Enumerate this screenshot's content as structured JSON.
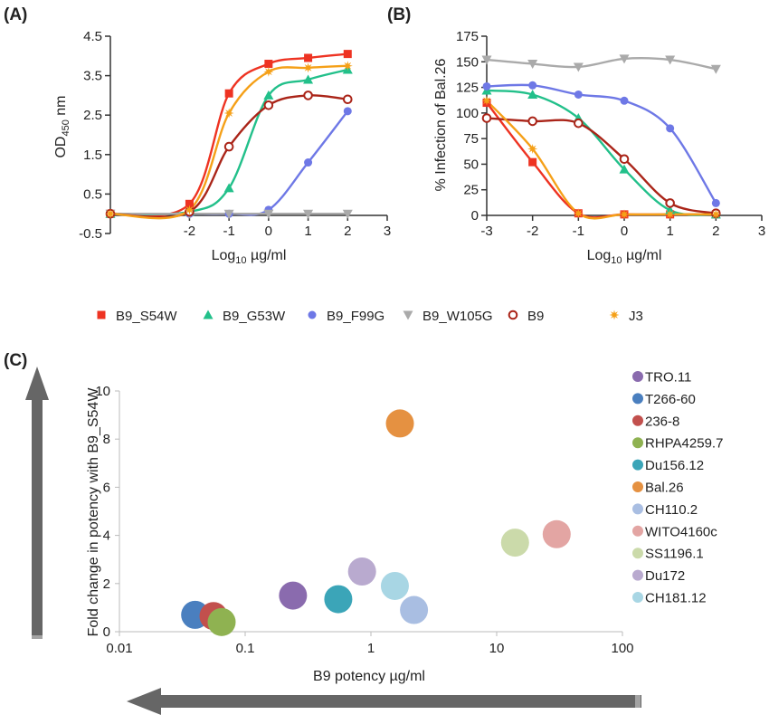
{
  "panels": {
    "a": "(A)",
    "b": "(B)",
    "c": "(C)"
  },
  "legend_series": [
    {
      "name": "B9_S54W",
      "color": "#EE3322",
      "marker": "square"
    },
    {
      "name": "B9_G53W",
      "color": "#22C08A",
      "marker": "triangle"
    },
    {
      "name": "B9_F99G",
      "color": "#6E78E6",
      "marker": "circle"
    },
    {
      "name": "B9_W105G",
      "color": "#AAAAAA",
      "marker": "triangle-down"
    },
    {
      "name": "B9",
      "color": "#AA2418",
      "marker": "open-circle"
    },
    {
      "name": "J3",
      "color": "#F5A018",
      "marker": "star"
    }
  ],
  "chart_data": [
    {
      "panel": "A",
      "type": "line",
      "xlabel": "Log10 µg/ml",
      "ylabel": "OD450 nm",
      "xlim": [
        -4,
        3
      ],
      "ylim": [
        -0.5,
        4.5
      ],
      "xticks": [
        "-2",
        "-1",
        "0",
        "1",
        "2",
        "3"
      ],
      "yticks": [
        "-0.5",
        "0.5",
        "1.5",
        "2.5",
        "3.5",
        "4.5"
      ],
      "series": [
        {
          "name": "B9_S54W",
          "x": [
            -4,
            -2,
            -1,
            0,
            1,
            2
          ],
          "y": [
            0.0,
            0.25,
            3.05,
            3.8,
            3.95,
            4.05
          ]
        },
        {
          "name": "B9_G53W",
          "x": [
            -4,
            -2,
            -1,
            0,
            1,
            2
          ],
          "y": [
            0.0,
            0.05,
            0.65,
            3.0,
            3.4,
            3.65
          ]
        },
        {
          "name": "B9_F99G",
          "x": [
            -4,
            -2,
            -1,
            0,
            1,
            2
          ],
          "y": [
            0.0,
            0.0,
            0.0,
            0.1,
            1.3,
            2.6
          ]
        },
        {
          "name": "B9_W105G",
          "x": [
            -4,
            -2,
            -1,
            0,
            1,
            2
          ],
          "y": [
            0.0,
            0.0,
            0.0,
            0.0,
            0.0,
            0.0
          ]
        },
        {
          "name": "B9",
          "x": [
            -4,
            -2,
            -1,
            0,
            1,
            2
          ],
          "y": [
            0.0,
            0.05,
            1.7,
            2.75,
            3.0,
            2.9
          ]
        },
        {
          "name": "J3",
          "x": [
            -4,
            -2,
            -1,
            0,
            1,
            2
          ],
          "y": [
            0.0,
            0.1,
            2.55,
            3.6,
            3.7,
            3.75
          ]
        }
      ]
    },
    {
      "panel": "B",
      "type": "line",
      "xlabel": "Log10 µg/ml",
      "ylabel": "% Infection of Bal.26",
      "xlim": [
        -3,
        3
      ],
      "ylim": [
        0,
        175
      ],
      "xticks": [
        "-3",
        "-2",
        "-1",
        "0",
        "1",
        "2",
        "3"
      ],
      "yticks": [
        "0",
        "25",
        "50",
        "75",
        "100",
        "125",
        "150",
        "175"
      ],
      "series": [
        {
          "name": "B9_S54W",
          "x": [
            -3,
            -2,
            -1,
            0,
            1,
            2
          ],
          "y": [
            110,
            52,
            2,
            1,
            1,
            1
          ]
        },
        {
          "name": "B9_G53W",
          "x": [
            -3,
            -2,
            -1,
            0,
            1,
            2
          ],
          "y": [
            122,
            118,
            95,
            45,
            5,
            1
          ]
        },
        {
          "name": "B9_F99G",
          "x": [
            -3,
            -2,
            -1,
            0,
            1,
            2
          ],
          "y": [
            126,
            127,
            118,
            112,
            85,
            12
          ]
        },
        {
          "name": "B9_W105G",
          "x": [
            -3,
            -2,
            -1,
            0,
            1,
            2
          ],
          "y": [
            152,
            148,
            145,
            153,
            152,
            143
          ]
        },
        {
          "name": "B9",
          "x": [
            -3,
            -2,
            -1,
            0,
            1,
            2
          ],
          "y": [
            95,
            92,
            90,
            55,
            12,
            2
          ]
        },
        {
          "name": "J3",
          "x": [
            -3,
            -2,
            -1,
            0,
            1,
            2
          ],
          "y": [
            112,
            65,
            2,
            1,
            1,
            1
          ]
        }
      ]
    },
    {
      "panel": "C",
      "type": "scatter",
      "xlabel": "B9 potency µg/ml",
      "ylabel": "Fold change in potency with B9_S54W",
      "xscale": "log",
      "xlim": [
        0.01,
        100
      ],
      "ylim": [
        0,
        10
      ],
      "xticks": [
        "0.01",
        "0.1",
        "1",
        "10",
        "100"
      ],
      "yticks": [
        "0",
        "2",
        "4",
        "6",
        "8",
        "10"
      ],
      "points": [
        {
          "name": "TRO.11",
          "x": 0.24,
          "y": 1.5,
          "color": "#8A6BAE"
        },
        {
          "name": "T266-60",
          "x": 0.04,
          "y": 0.7,
          "color": "#4A7FBF"
        },
        {
          "name": "236-8",
          "x": 0.056,
          "y": 0.65,
          "color": "#C2504D"
        },
        {
          "name": "RHPA4259.7",
          "x": 0.065,
          "y": 0.4,
          "color": "#8FB251"
        },
        {
          "name": "Du156.12",
          "x": 0.55,
          "y": 1.35,
          "color": "#3BA5B8"
        },
        {
          "name": "Bal.26",
          "x": 1.7,
          "y": 8.65,
          "color": "#E59141"
        },
        {
          "name": "CH110.2",
          "x": 2.2,
          "y": 0.9,
          "color": "#A9BEE2"
        },
        {
          "name": "WITO4160c",
          "x": 30,
          "y": 4.05,
          "color": "#E3A5A3"
        },
        {
          "name": "SS1196.1",
          "x": 14,
          "y": 3.7,
          "color": "#CBDAAA"
        },
        {
          "name": "Du172",
          "x": 0.85,
          "y": 2.5,
          "color": "#B9AACF"
        },
        {
          "name": "CH181.12",
          "x": 1.55,
          "y": 1.9,
          "color": "#A8D6E4"
        }
      ]
    }
  ]
}
